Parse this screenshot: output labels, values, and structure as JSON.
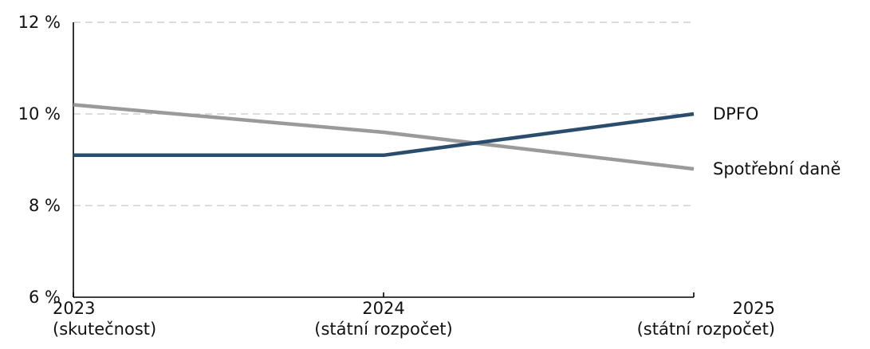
{
  "chart_data": {
    "type": "line",
    "categories": [
      [
        "2023",
        "(skutečnost)"
      ],
      [
        "2024",
        "(státní rozpočet)"
      ],
      [
        "2025",
        "(státní rozpočet)"
      ]
    ],
    "series": [
      {
        "name": "DPFO",
        "values": [
          9.1,
          9.1,
          10.0
        ],
        "color": "#2a4d6e"
      },
      {
        "name": "Spotřební daně",
        "values": [
          10.2,
          9.6,
          8.8
        ],
        "color": "#9a9a9a"
      }
    ],
    "ylim": [
      6,
      12
    ],
    "yticks": [
      6,
      8,
      10,
      12
    ],
    "ytick_labels": [
      "6 %",
      "8 %",
      "10 %",
      "12 %"
    ],
    "grid": "horizontal-dashed",
    "legend": "line-end-labels"
  }
}
